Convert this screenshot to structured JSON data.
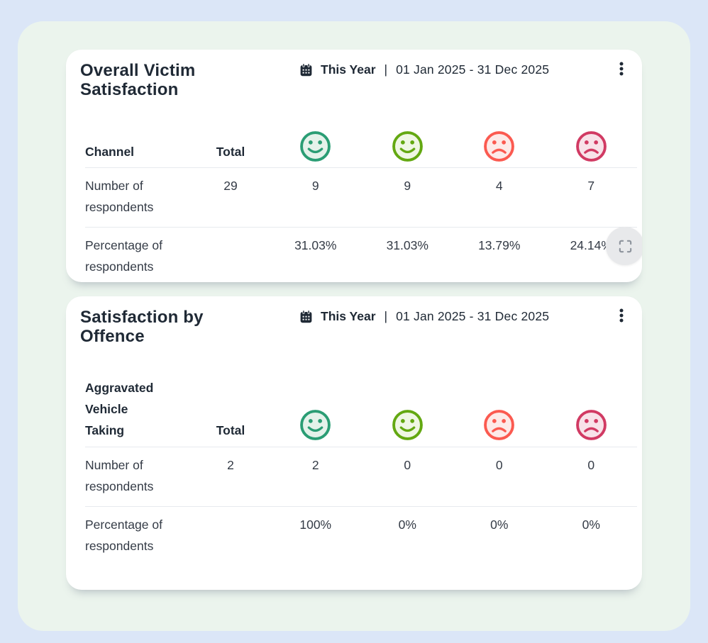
{
  "theme": {
    "colors": {
      "page-bg": "#dbe6f7",
      "panel-bg": "#ebf4ed",
      "card-bg": "#ffffff",
      "title-color": "#1f2935",
      "text-color": "#343b46",
      "divider-color": "#e7eaee",
      "expand-bg": "#e8e9eb",
      "expand-icon-color": "#8d939c"
    },
    "faces": [
      {
        "name": "very-satisfied",
        "mouth": "smile",
        "stroke": "#2a9d74",
        "fill": "#e4f2ea"
      },
      {
        "name": "satisfied",
        "mouth": "smile",
        "stroke": "#63a811",
        "fill": "#eff7e4"
      },
      {
        "name": "dissatisfied",
        "mouth": "frown",
        "stroke": "#fb5a50",
        "fill": "#fdeae8"
      },
      {
        "name": "very-dissatisfied",
        "mouth": "frown",
        "stroke": "#d13a63",
        "fill": "#f8e2e9"
      }
    ]
  },
  "icons": {
    "calendar": "calendar-icon",
    "more_options": "kebab-menu-icon",
    "expand": "expand-fullscreen-icon"
  },
  "cards": [
    {
      "title": "Overall Victim Satisfaction",
      "date_filter": {
        "preset": "This Year",
        "separator": "|",
        "range": "01 Jan 2025 - 31 Dec 2025"
      },
      "table": {
        "label_header": "Channel",
        "total_header": "Total",
        "rows": [
          {
            "label": "Number of respondents",
            "total": "29",
            "values": [
              "9",
              "9",
              "4",
              "7"
            ]
          },
          {
            "label": "Percentage of respondents",
            "total": "",
            "values": [
              "31.03%",
              "31.03%",
              "13.79%",
              "24.14%"
            ]
          }
        ]
      },
      "expand_button": true
    },
    {
      "title": "Satisfaction by Offence",
      "date_filter": {
        "preset": "This Year",
        "separator": "|",
        "range": "01 Jan 2025 - 31 Dec 2025"
      },
      "table": {
        "label_header": "Aggravated Vehicle Taking",
        "total_header": "Total",
        "rows": [
          {
            "label": "Number of respondents",
            "total": "2",
            "values": [
              "2",
              "0",
              "0",
              "0"
            ]
          },
          {
            "label": "Percentage of respondents",
            "total": "",
            "values": [
              "100%",
              "0%",
              "0%",
              "0%"
            ]
          }
        ]
      },
      "expand_button": false
    }
  ]
}
